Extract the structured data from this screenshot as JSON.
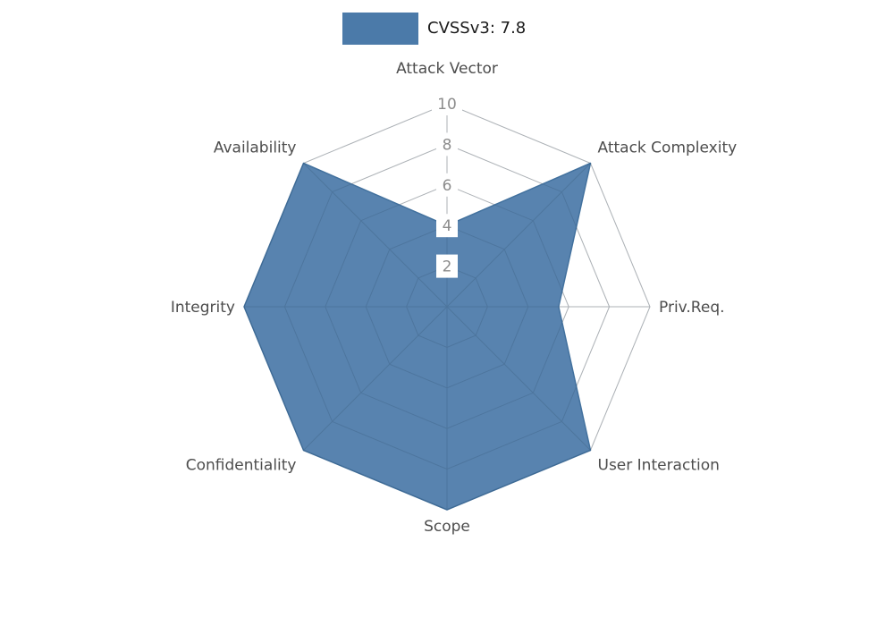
{
  "legend": {
    "label": "CVSSv3: 7.8"
  },
  "chart_data": {
    "type": "radar",
    "title": "CVSSv3: 7.8",
    "score": 7.8,
    "categories": [
      "Attack Vector",
      "Attack Complexity",
      "Priv.Req.",
      "User Interaction",
      "Scope",
      "Confidentiality",
      "Integrity",
      "Availability"
    ],
    "series": [
      {
        "name": "CVSSv3: 7.8",
        "values": [
          4,
          10,
          5.5,
          10,
          10,
          10,
          10,
          10
        ]
      }
    ],
    "ticks": [
      2,
      4,
      6,
      8,
      10
    ],
    "rmax": 10,
    "grid": true,
    "legend_position": "top",
    "colors": {
      "fill": "#4b7aa9",
      "stroke": "#42719e",
      "grid": "#c9c9c9",
      "axis_label": "#4d4d4d",
      "tick_label": "#8c8c8c",
      "legend_text": "#1a1a1a"
    }
  }
}
